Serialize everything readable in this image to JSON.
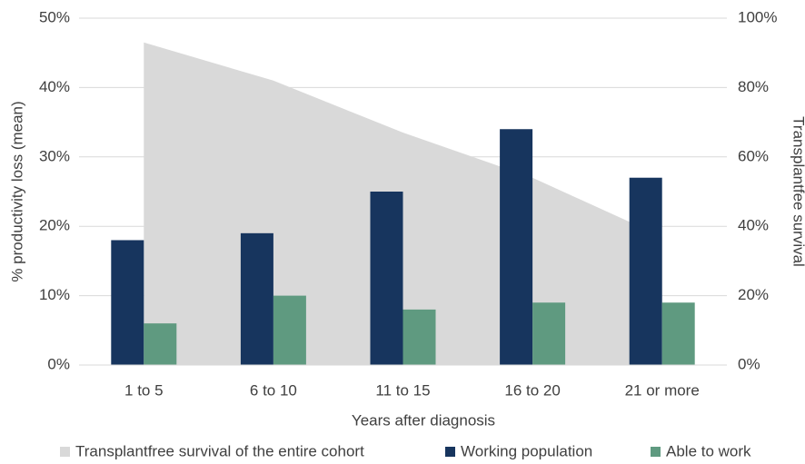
{
  "chart_data": {
    "type": "bar",
    "categories": [
      "1 to 5",
      "6 to 10",
      "11 to 15",
      "16 to 20",
      "21 or more"
    ],
    "x_label": "Years after diagnosis",
    "y_label": "% productivity loss (mean)",
    "y2_label": "Transplantfee survival",
    "ylim": [
      0,
      50
    ],
    "yticks": [
      {
        "value": 0,
        "label": "0%"
      },
      {
        "value": 10,
        "label": "10%"
      },
      {
        "value": 20,
        "label": "20%"
      },
      {
        "value": 30,
        "label": "30%"
      },
      {
        "value": 40,
        "label": "40%"
      },
      {
        "value": 50,
        "label": "50%"
      }
    ],
    "y2lim": [
      0,
      100
    ],
    "y2ticks": [
      {
        "value": 0,
        "label": "0%"
      },
      {
        "value": 20,
        "label": "20%"
      },
      {
        "value": 40,
        "label": "40%"
      },
      {
        "value": 60,
        "label": "60%"
      },
      {
        "value": 80,
        "label": "80%"
      },
      {
        "value": 100,
        "label": "100%"
      }
    ],
    "grid": true,
    "legend": "bottom",
    "series": [
      {
        "name": "Transplantfree survival of the entire cohort",
        "type": "area",
        "axis": "y2",
        "color": "#d9d9d9",
        "values": [
          93,
          82,
          67,
          54,
          37
        ]
      },
      {
        "name": "Working population",
        "type": "bar",
        "color": "#17355e",
        "values": [
          18,
          19,
          25,
          34,
          27
        ]
      },
      {
        "name": "Able to work",
        "type": "bar",
        "color": "#5f9a80",
        "values": [
          6,
          10,
          8,
          9,
          9
        ]
      }
    ]
  }
}
